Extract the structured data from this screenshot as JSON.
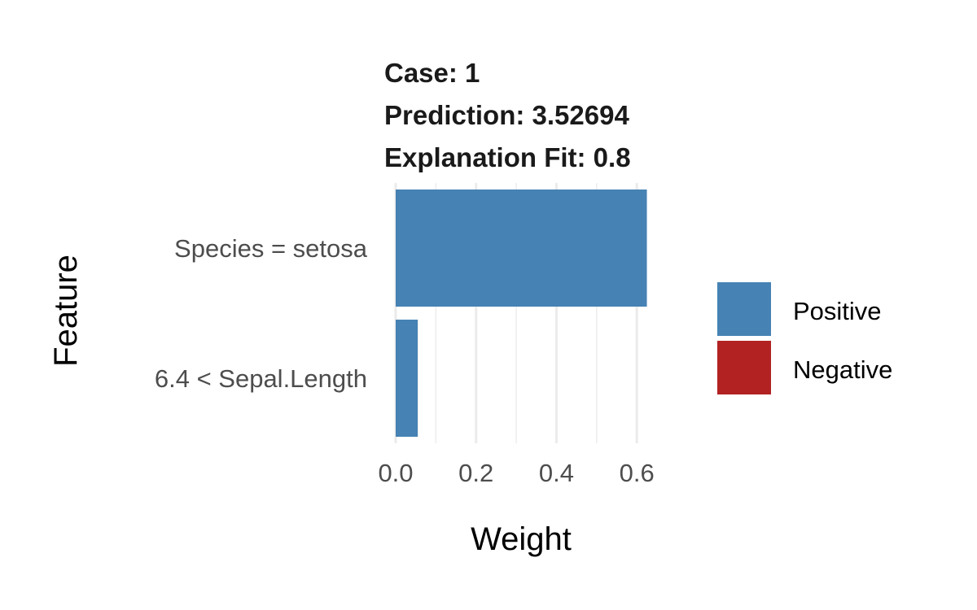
{
  "chart_data": {
    "type": "bar",
    "orientation": "horizontal",
    "title_lines": [
      "Case: 1",
      "Prediction: 3.52694",
      "Explanation Fit: 0.8"
    ],
    "xlabel": "Weight",
    "ylabel": "Feature",
    "categories": [
      "Species = setosa",
      "6.4 < Sepal.Length"
    ],
    "values": [
      0.625,
      0.055
    ],
    "bar_signs": [
      "Positive",
      "Positive"
    ],
    "xlim": [
      0,
      0.63
    ],
    "xticks": [
      0.0,
      0.2,
      0.4,
      0.6
    ],
    "xtick_labels": [
      "0.0",
      "0.2",
      "0.4",
      "0.6"
    ],
    "minor_gridlines": [
      0.1,
      0.3,
      0.5
    ],
    "grid": true,
    "legend": {
      "placement": "right",
      "entries": [
        {
          "label": "Positive",
          "color": "#4682B4"
        },
        {
          "label": "Negative",
          "color": "#B22222"
        }
      ]
    },
    "colors": {
      "Positive": "#4682B4",
      "Negative": "#B22222"
    }
  }
}
